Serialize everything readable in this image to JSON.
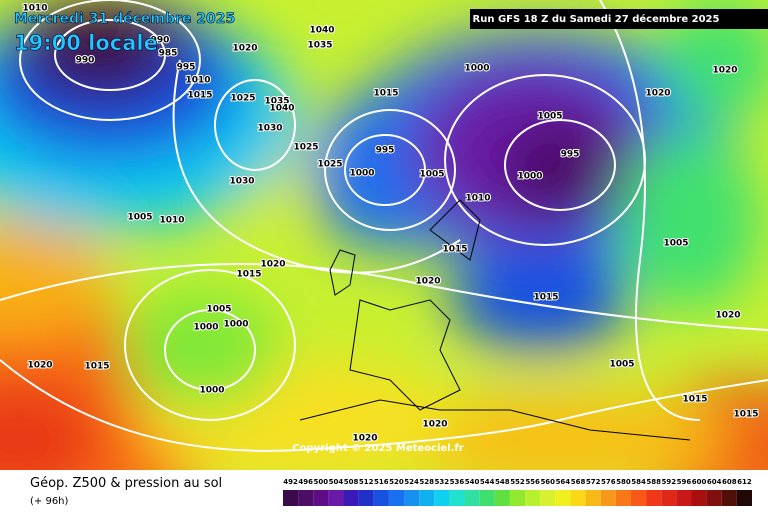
{
  "header": {
    "date": "Mercredi 31 décembre 2025",
    "time": "19:00 locale",
    "run": "Run GFS 18 Z du Samedi 27 décembre 2025"
  },
  "map": {
    "copyright": "Copyright © 2025 Meteociel.fr",
    "isobar_labels": [
      1010,
      990,
      985,
      990,
      995,
      1020,
      1010,
      1015,
      1025,
      1035,
      1040,
      1030,
      1035,
      1040,
      1025,
      1025,
      995,
      1000,
      1005,
      1015,
      1000,
      1005,
      995,
      1000,
      1010,
      1020,
      1020,
      1030,
      1005,
      1010,
      1015,
      1005,
      1020,
      1015,
      1020,
      1015,
      1005,
      1000,
      1000,
      1020,
      1020,
      1015,
      1005,
      1000,
      1015,
      1015,
      1020,
      1020
    ]
  },
  "footer": {
    "title": "Géop. Z500 & pression au sol",
    "lead": "(+ 96h)",
    "scale_ticks": [
      492,
      496,
      500,
      504,
      508,
      512,
      516,
      520,
      524,
      528,
      532,
      536,
      540,
      544,
      548,
      552,
      556,
      560,
      564,
      568,
      572,
      576,
      580,
      584,
      588,
      592,
      596,
      600,
      604,
      608,
      612
    ],
    "scale_colors": [
      "#3a0a4a",
      "#4b0d66",
      "#5e0d86",
      "#6a1aa8",
      "#3a1ab8",
      "#2030c8",
      "#1850e0",
      "#1a70f0",
      "#1890f0",
      "#10b0f0",
      "#10d0f0",
      "#20e0d0",
      "#30e0a0",
      "#40e070",
      "#60e040",
      "#90e830",
      "#b8f030",
      "#d8f030",
      "#f0f020",
      "#f8d818",
      "#f8b818",
      "#f89818",
      "#f87818",
      "#f85818",
      "#f03818",
      "#e02818",
      "#c81818",
      "#a81010",
      "#801010",
      "#501008",
      "#200808"
    ]
  }
}
